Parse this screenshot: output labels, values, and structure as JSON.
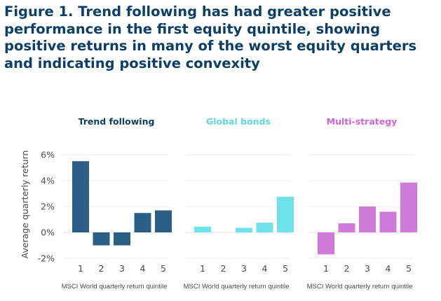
{
  "figure": {
    "title": "Figure 1. Trend following has had greater positive performance in the first equity quintile, showing positive returns in many of the worst equity quarters and indicating positive convexity"
  },
  "chart_data": {
    "type": "bar",
    "ylabel": "Average quarterly return",
    "ylim": [
      -2,
      6
    ],
    "yticks": [
      6,
      4,
      2,
      0,
      -2
    ],
    "ytick_labels": [
      "6%",
      "4%",
      "2%",
      "0%",
      "-2%"
    ],
    "grid": true,
    "categories": [
      "1",
      "2",
      "3",
      "4",
      "5"
    ],
    "panels": [
      {
        "name": "Trend following",
        "color": "#2c5f86",
        "title_color": "#0c3f67",
        "xlabel": "MSCI World quarterly return quintile",
        "values": [
          5.5,
          -1.0,
          -1.0,
          1.5,
          1.7
        ]
      },
      {
        "name": "Global bonds",
        "color": "#6ee3ea",
        "title_color": "#5fd8e2",
        "xlabel": "MSCI World quarterly return quintile",
        "values": [
          0.45,
          0.0,
          0.35,
          0.75,
          2.75
        ]
      },
      {
        "name": "Multi-strategy",
        "color": "#d07bdb",
        "title_color": "#cf63d8",
        "xlabel": "MSCI World quarterly return quintile",
        "values": [
          -1.7,
          0.7,
          2.0,
          1.6,
          3.85
        ]
      }
    ]
  }
}
